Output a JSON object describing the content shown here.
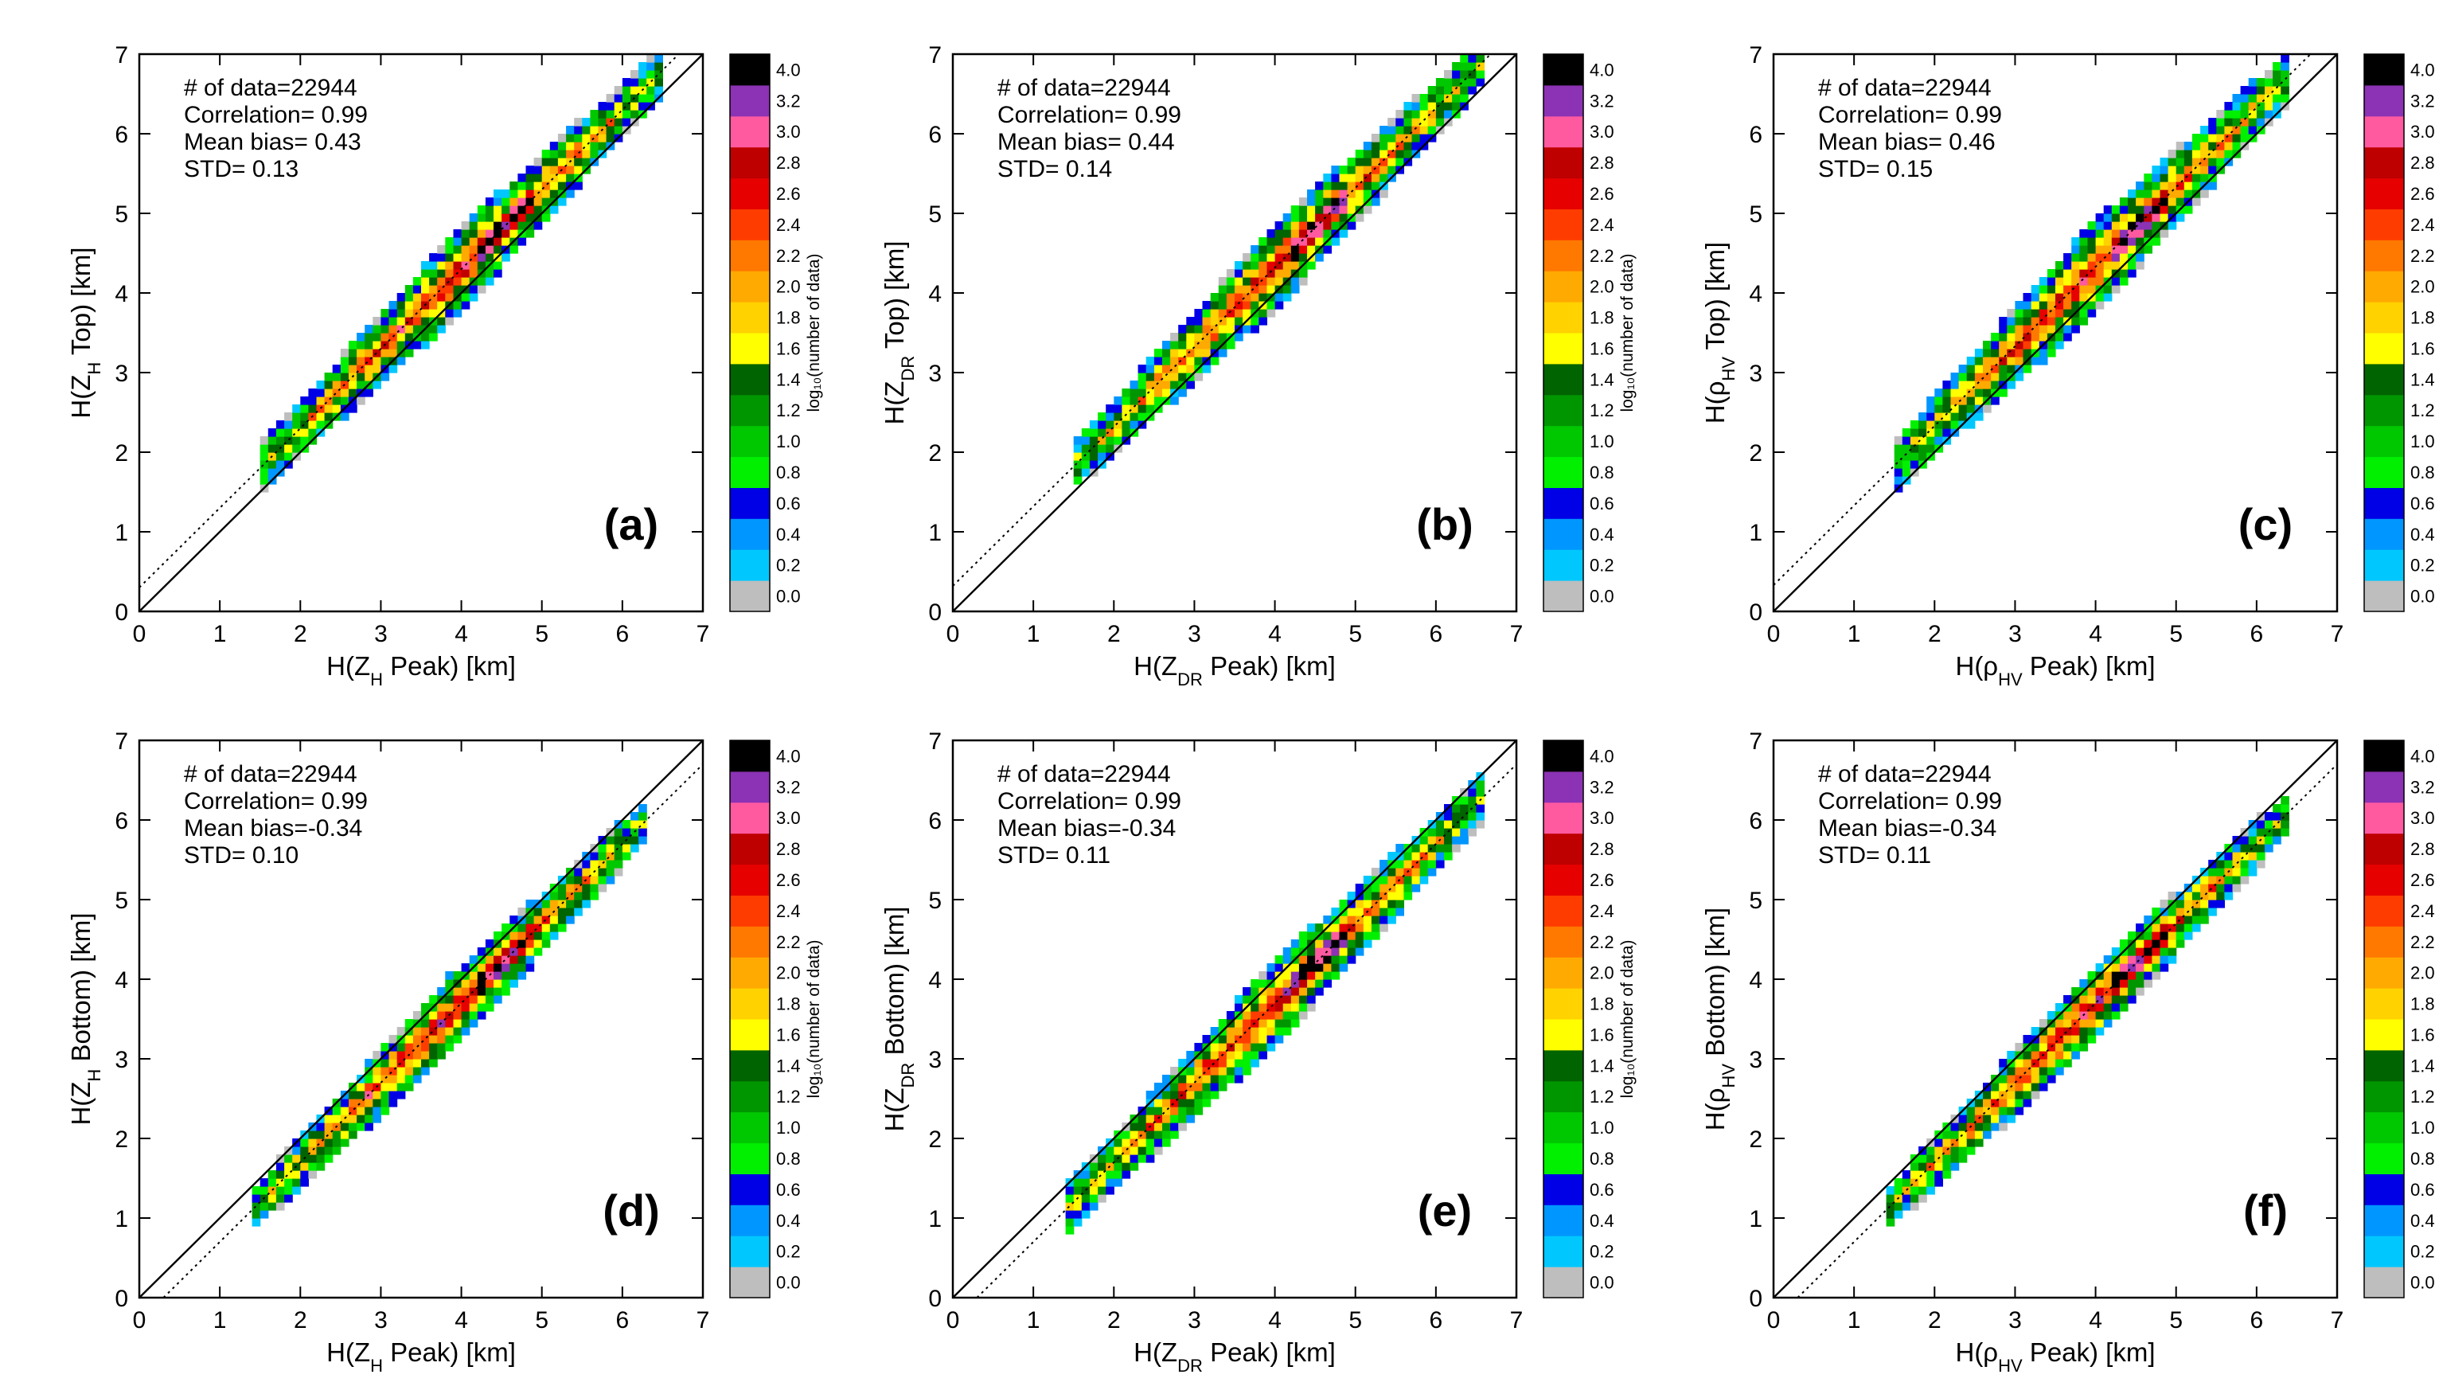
{
  "figure_title": "",
  "colorbar": {
    "label": "log₁₀(number of data)",
    "ticks": [
      "0.0",
      "0.2",
      "0.4",
      "0.6",
      "0.8",
      "1.0",
      "1.2",
      "1.4",
      "1.6",
      "1.8",
      "2.0",
      "2.2",
      "2.4",
      "2.6",
      "2.8",
      "3.0",
      "3.2",
      "4.0"
    ],
    "colors": [
      "#bebebe",
      "#00c8ff",
      "#0096ff",
      "#0000e6",
      "#00f000",
      "#00c800",
      "#009600",
      "#006400",
      "#ffff00",
      "#ffd200",
      "#ffaa00",
      "#ff7800",
      "#ff3c00",
      "#e60000",
      "#be0000",
      "#ff5aa0",
      "#8c32b4",
      "#000000"
    ]
  },
  "axis_ticks": [
    "0",
    "1",
    "2",
    "3",
    "4",
    "5",
    "6",
    "7"
  ],
  "chart_data": [
    {
      "id": "a",
      "type": "heatmap",
      "panel_label": "(a)",
      "xlabel": "H(Z_H Peak) [km]",
      "ylabel": "H(Z_H Top) [km]",
      "xlim": [
        0,
        7
      ],
      "ylim": [
        0,
        7
      ],
      "stats": {
        "n": "# of data=22944",
        "corr": "Correlation= 0.99",
        "bias": "Mean bias= 0.43",
        "std": "STD= 0.13"
      },
      "fit_offset": 0.3,
      "width": 0.55,
      "x_range": [
        1.5,
        6.5
      ]
    },
    {
      "id": "b",
      "type": "heatmap",
      "panel_label": "(b)",
      "xlabel": "H(Z_DR Peak) [km]",
      "ylabel": "H(Z_DR Top) [km]",
      "xlim": [
        0,
        7
      ],
      "ylim": [
        0,
        7
      ],
      "stats": {
        "n": "# of data=22944",
        "corr": "Correlation= 0.99",
        "bias": "Mean bias= 0.44",
        "std": "STD= 0.14"
      },
      "fit_offset": 0.32,
      "width": 0.55,
      "x_range": [
        1.5,
        6.6
      ]
    },
    {
      "id": "c",
      "type": "heatmap",
      "panel_label": "(c)",
      "xlabel": "H(ρ_HV Peak) [km]",
      "ylabel": "H(ρ_HV Top) [km]",
      "xlim": [
        0,
        7
      ],
      "ylim": [
        0,
        7
      ],
      "stats": {
        "n": "# of data=22944",
        "corr": "Correlation= 0.99",
        "bias": "Mean bias= 0.46",
        "std": "STD= 0.15"
      },
      "fit_offset": 0.33,
      "width": 0.6,
      "x_range": [
        1.5,
        6.4
      ]
    },
    {
      "id": "d",
      "type": "heatmap",
      "panel_label": "(d)",
      "xlabel": "H(Z_H Peak) [km]",
      "ylabel": "H(Z_H Bottom) [km]",
      "xlim": [
        0,
        7
      ],
      "ylim": [
        0,
        7
      ],
      "stats": {
        "n": "# of data=22944",
        "corr": "Correlation= 0.99",
        "bias": "Mean bias=-0.34",
        "std": "STD= 0.10"
      },
      "fit_offset": -0.3,
      "width": 0.5,
      "x_range": [
        1.4,
        6.3
      ]
    },
    {
      "id": "e",
      "type": "heatmap",
      "panel_label": "(e)",
      "xlabel": "H(Z_DR Peak) [km]",
      "ylabel": "H(Z_DR Bottom) [km]",
      "xlim": [
        0,
        7
      ],
      "ylim": [
        0,
        7
      ],
      "stats": {
        "n": "# of data=22944",
        "corr": "Correlation= 0.99",
        "bias": "Mean bias=-0.34",
        "std": "STD= 0.11"
      },
      "fit_offset": -0.3,
      "width": 0.55,
      "x_range": [
        1.4,
        6.6
      ]
    },
    {
      "id": "f",
      "type": "heatmap",
      "panel_label": "(f)",
      "xlabel": "H(ρ_HV Peak) [km]",
      "ylabel": "H(ρ_HV Bottom) [km]",
      "xlim": [
        0,
        7
      ],
      "ylim": [
        0,
        7
      ],
      "stats": {
        "n": "# of data=22944",
        "corr": "Correlation= 0.99",
        "bias": "Mean bias=-0.34",
        "std": "STD= 0.11"
      },
      "fit_offset": -0.3,
      "width": 0.5,
      "x_range": [
        1.4,
        6.4
      ]
    }
  ]
}
